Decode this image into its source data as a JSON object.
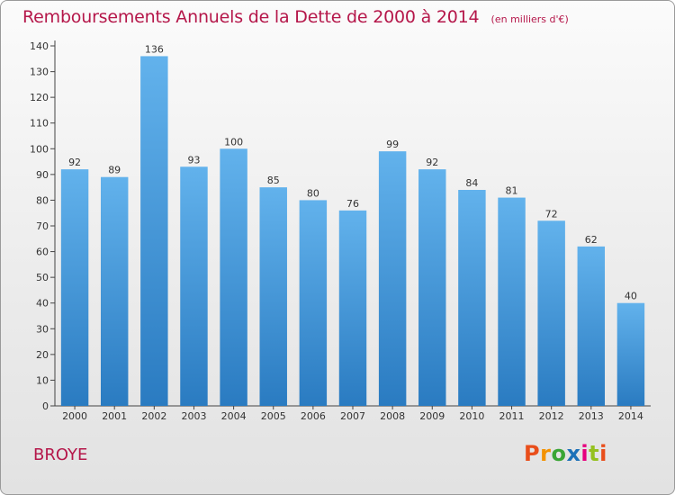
{
  "header": {
    "title": "Remboursements Annuels de la Dette de 2000 à 2014",
    "subtitle": "(en milliers d'€)"
  },
  "footer": {
    "place": "BROYE",
    "brand": "Proxiti",
    "brand_colors": [
      "#e94e1b",
      "#f39200",
      "#3aa535",
      "#1d71b8",
      "#e6007e",
      "#95c11f",
      "#e94e1b"
    ]
  },
  "chart_data": {
    "type": "bar",
    "title": "Remboursements Annuels de la Dette de 2000 à 2014",
    "subtitle": "(en milliers d'€)",
    "xlabel": "",
    "ylabel": "",
    "categories": [
      "2000",
      "2001",
      "2002",
      "2003",
      "2004",
      "2005",
      "2006",
      "2007",
      "2008",
      "2009",
      "2010",
      "2011",
      "2012",
      "2013",
      "2014"
    ],
    "values": [
      92,
      89,
      136,
      93,
      100,
      85,
      80,
      76,
      99,
      92,
      84,
      81,
      72,
      62,
      40
    ],
    "ylim": [
      0,
      140
    ],
    "yticks": [
      0,
      10,
      20,
      30,
      40,
      50,
      60,
      70,
      80,
      90,
      100,
      110,
      120,
      130,
      140
    ],
    "grid": false,
    "legend": "none",
    "colors": {
      "bar_top": "#62b2ec",
      "bar_bottom": "#2a7bc1",
      "axis": "#444444",
      "title": "#b5174a"
    }
  }
}
